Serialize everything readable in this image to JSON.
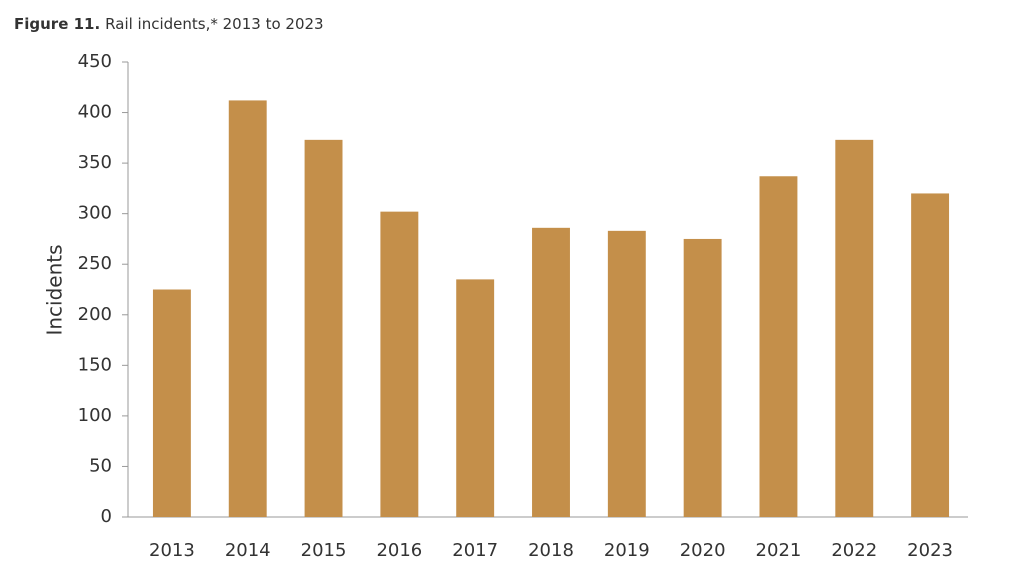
{
  "chart_data": {
    "type": "bar",
    "figure_label": "Figure 11.",
    "title": "Rail incidents,* 2013 to 2023",
    "y_label": "Incidents",
    "categories": [
      "2013",
      "2014",
      "2015",
      "2016",
      "2017",
      "2018",
      "2019",
      "2020",
      "2021",
      "2022",
      "2023"
    ],
    "values": [
      225,
      412,
      373,
      302,
      235,
      286,
      283,
      275,
      337,
      373,
      320
    ],
    "color": "#c48f4a",
    "ylim": [
      0,
      450
    ],
    "yticks": [
      0,
      50,
      100,
      150,
      200,
      250,
      300,
      350,
      400,
      450
    ],
    "grid": false
  }
}
